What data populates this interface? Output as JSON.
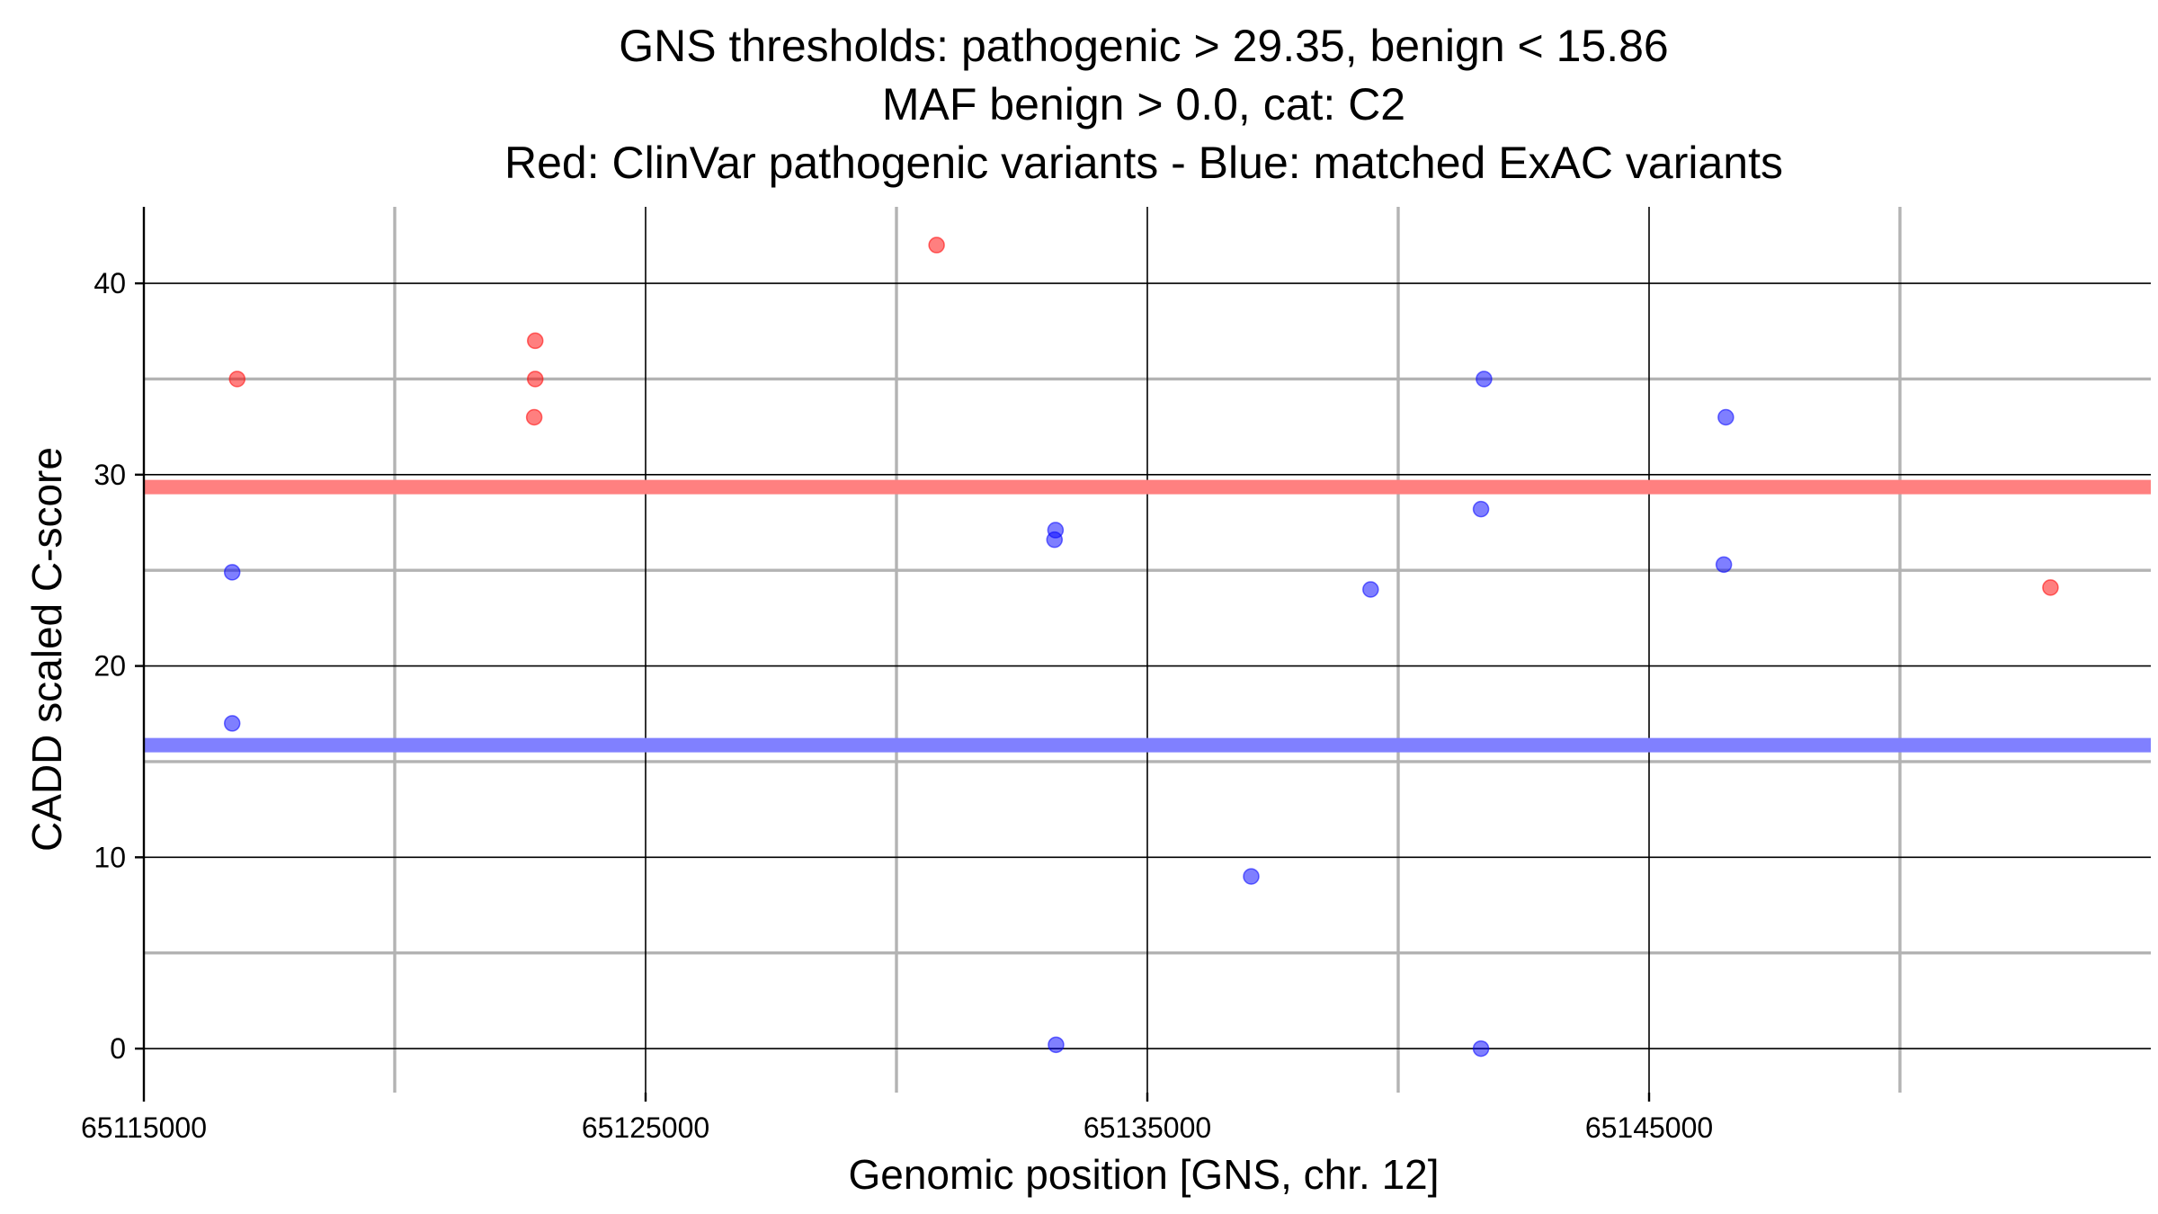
{
  "chart_data": {
    "type": "scatter",
    "title_lines": [
      "GNS thresholds: pathogenic > 29.35, benign < 15.86",
      "MAF benign > 0.0, cat: C2",
      "Red: ClinVar pathogenic variants - Blue: matched ExAC variants"
    ],
    "xlabel": "Genomic position [GNS, chr. 12]",
    "ylabel": "CADD scaled C-score",
    "xlim": [
      65115000,
      65155000
    ],
    "ylim": [
      -2.3,
      44
    ],
    "x_ticks": [
      65115000,
      65125000,
      65135000,
      65145000
    ],
    "x_tick_labels": [
      "65115000",
      "65125000",
      "65135000",
      "65145000"
    ],
    "x_minor_ticks": [
      65120000,
      65130000,
      65140000,
      65150000
    ],
    "y_ticks": [
      0,
      10,
      20,
      30,
      40
    ],
    "y_tick_labels": [
      "0",
      "10",
      "20",
      "30",
      "40"
    ],
    "y_minor_ticks": [
      5,
      15,
      25,
      35
    ],
    "grid": true,
    "thresholds": [
      {
        "value": 29.35,
        "color": "#ff8080"
      },
      {
        "value": 15.86,
        "color": "#8080ff"
      }
    ],
    "series": [
      {
        "color": "#ff0000",
        "points": [
          {
            "x": 65116860,
            "y": 35
          },
          {
            "x": 65122800,
            "y": 37
          },
          {
            "x": 65122800,
            "y": 35
          },
          {
            "x": 65122780,
            "y": 33
          },
          {
            "x": 65130800,
            "y": 42
          },
          {
            "x": 65153000,
            "y": 24.1
          }
        ]
      },
      {
        "color": "#0000ff",
        "points": [
          {
            "x": 65116760,
            "y": 24.9
          },
          {
            "x": 65116760,
            "y": 17
          },
          {
            "x": 65133170,
            "y": 27.1
          },
          {
            "x": 65133150,
            "y": 26.6
          },
          {
            "x": 65133180,
            "y": 0.2
          },
          {
            "x": 65137070,
            "y": 9
          },
          {
            "x": 65139450,
            "y": 24
          },
          {
            "x": 65141710,
            "y": 35
          },
          {
            "x": 65141650,
            "y": 28.2
          },
          {
            "x": 65141650,
            "y": 0
          },
          {
            "x": 65146530,
            "y": 33
          },
          {
            "x": 65146490,
            "y": 25.3
          }
        ]
      }
    ]
  }
}
